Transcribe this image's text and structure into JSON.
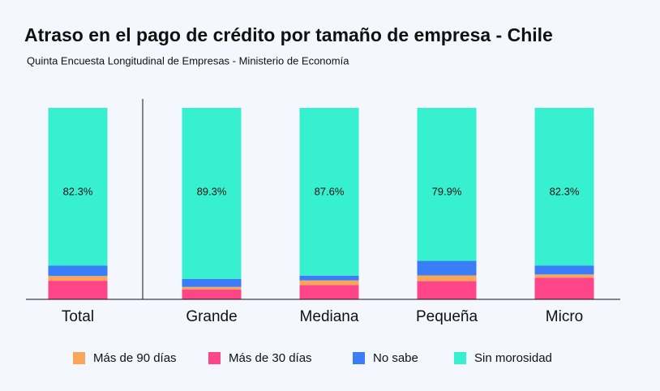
{
  "chart_data": {
    "type": "stacked-bar",
    "title": "Atraso en el pago de crédito por tamaño de empresa - Chile",
    "subtitle": "Quinta Encuesta Longitudinal de Empresas - Ministerio de Economía",
    "categories": [
      "Total",
      "Grande",
      "Mediana",
      "Pequeña",
      "Micro"
    ],
    "ylim": [
      0,
      100
    ],
    "series": [
      {
        "name": "Más de 90 días",
        "color": "#f9a65a",
        "values": [
          2.5,
          1.3,
          2.5,
          3.0,
          1.7
        ]
      },
      {
        "name": "Más de 30 días",
        "color": "#ff4589",
        "values": [
          9.7,
          5.2,
          7.4,
          9.5,
          11.3
        ]
      },
      {
        "name": "No sabe",
        "color": "#3a7ef7",
        "values": [
          5.5,
          4.2,
          2.5,
          7.6,
          4.7
        ]
      },
      {
        "name": "Sin morosidad",
        "color": "#36f0cf",
        "values": [
          82.3,
          89.3,
          87.6,
          79.9,
          82.3
        ],
        "value_labels": [
          "82.3%",
          "89.3%",
          "87.6%",
          "79.9%",
          "82.3%"
        ]
      }
    ]
  }
}
